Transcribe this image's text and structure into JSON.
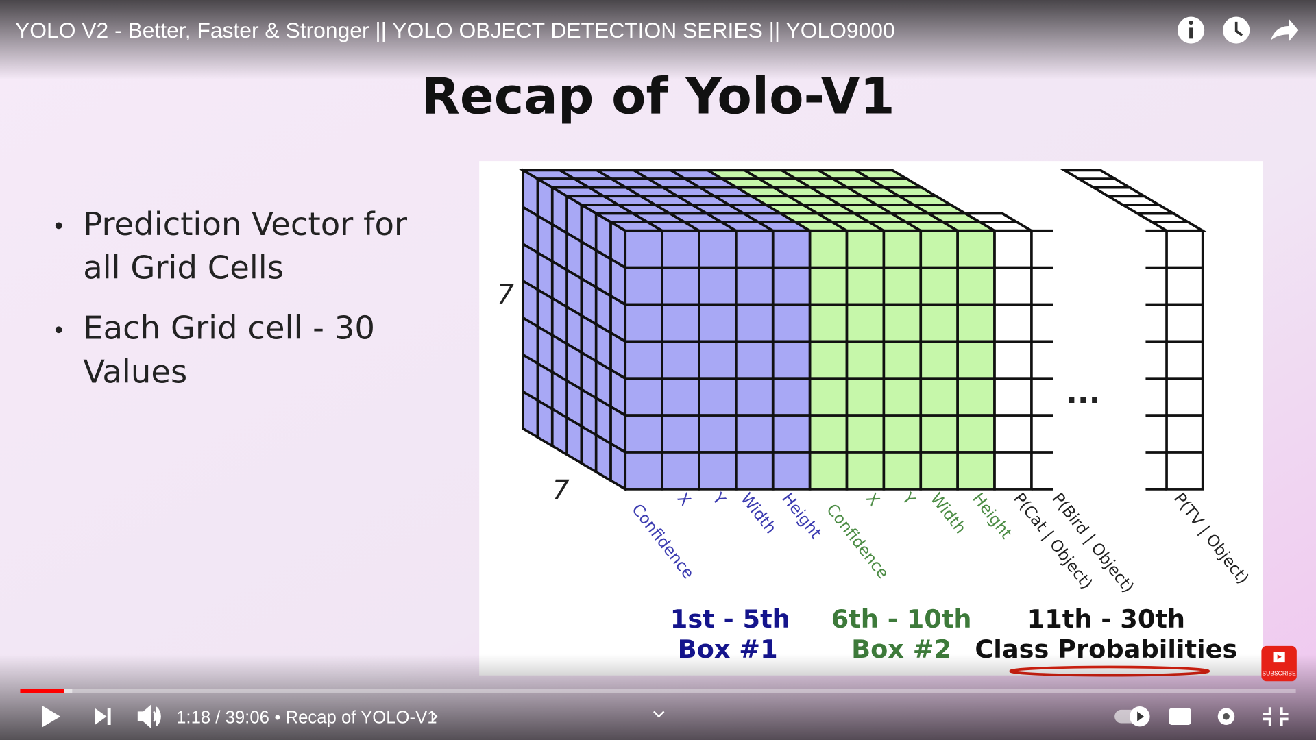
{
  "player": {
    "video_title": "YOLO V2 - Better, Faster & Stronger || YOLO OBJECT DETECTION SERIES || YOLO9000",
    "time": "1:18 / 39:06",
    "chapter": "• Recap of YOLO-V1",
    "subscribe": "SUBSCRIBE"
  },
  "slide": {
    "heading": "Recap of Yolo-V1",
    "bullets": [
      [
        "Prediction Vector for",
        "all Grid Cells"
      ],
      [
        "Each Grid cell - 30",
        "Values"
      ]
    ],
    "diagram": {
      "rows_label": "7",
      "depth_label": "7",
      "ellipsis": "...",
      "column_labels": [
        "Confidence",
        "X",
        "Y",
        "Width",
        "Height",
        "Confidence",
        "X",
        "Y",
        "Width",
        "Height",
        "P(Cat | Object)",
        "P(Bird | Object)",
        "P(TV | Object)"
      ],
      "groups": [
        {
          "range": "1st - 5th",
          "name": "Box #1"
        },
        {
          "range": "6th - 10th",
          "name": "Box #2"
        },
        {
          "range": "11th - 30th",
          "name": "Class Probabilities"
        }
      ]
    }
  }
}
